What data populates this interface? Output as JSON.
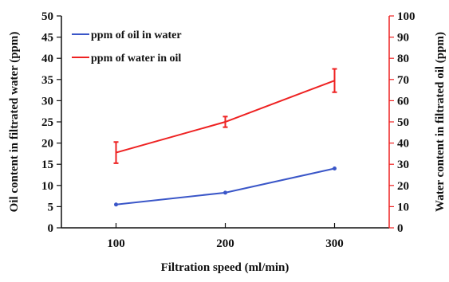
{
  "chart_data": {
    "type": "line",
    "xlabel": "Filtration speed (ml/min)",
    "ylabel_left": "Oil content in filtrated water (ppm)",
    "ylabel_right": "Water content in filtrated oil (ppm)",
    "x_ticks": [
      "100",
      "200",
      "300"
    ],
    "xlim": [
      50,
      350
    ],
    "y_left_ticks": [
      "0",
      "5",
      "10",
      "15",
      "20",
      "25",
      "30",
      "35",
      "40",
      "45",
      "50"
    ],
    "y_right_ticks": [
      "0",
      "10",
      "20",
      "30",
      "40",
      "50",
      "60",
      "70",
      "80",
      "90",
      "100"
    ],
    "ylim_left": [
      0,
      50
    ],
    "ylim_right": [
      0,
      100
    ],
    "legend_position": "top-left",
    "grid": false,
    "series": [
      {
        "name": "ppm of oil in water",
        "axis": "left",
        "color": "#3a56c8",
        "x": [
          100,
          200,
          300
        ],
        "y": [
          5.5,
          8.3,
          14.0
        ]
      },
      {
        "name": "ppm of water in oil",
        "axis": "right",
        "color": "#ee2222",
        "x": [
          100,
          200,
          300
        ],
        "y": [
          35.5,
          50.0,
          69.5
        ],
        "error": [
          5,
          2.5,
          5.5
        ]
      }
    ]
  }
}
